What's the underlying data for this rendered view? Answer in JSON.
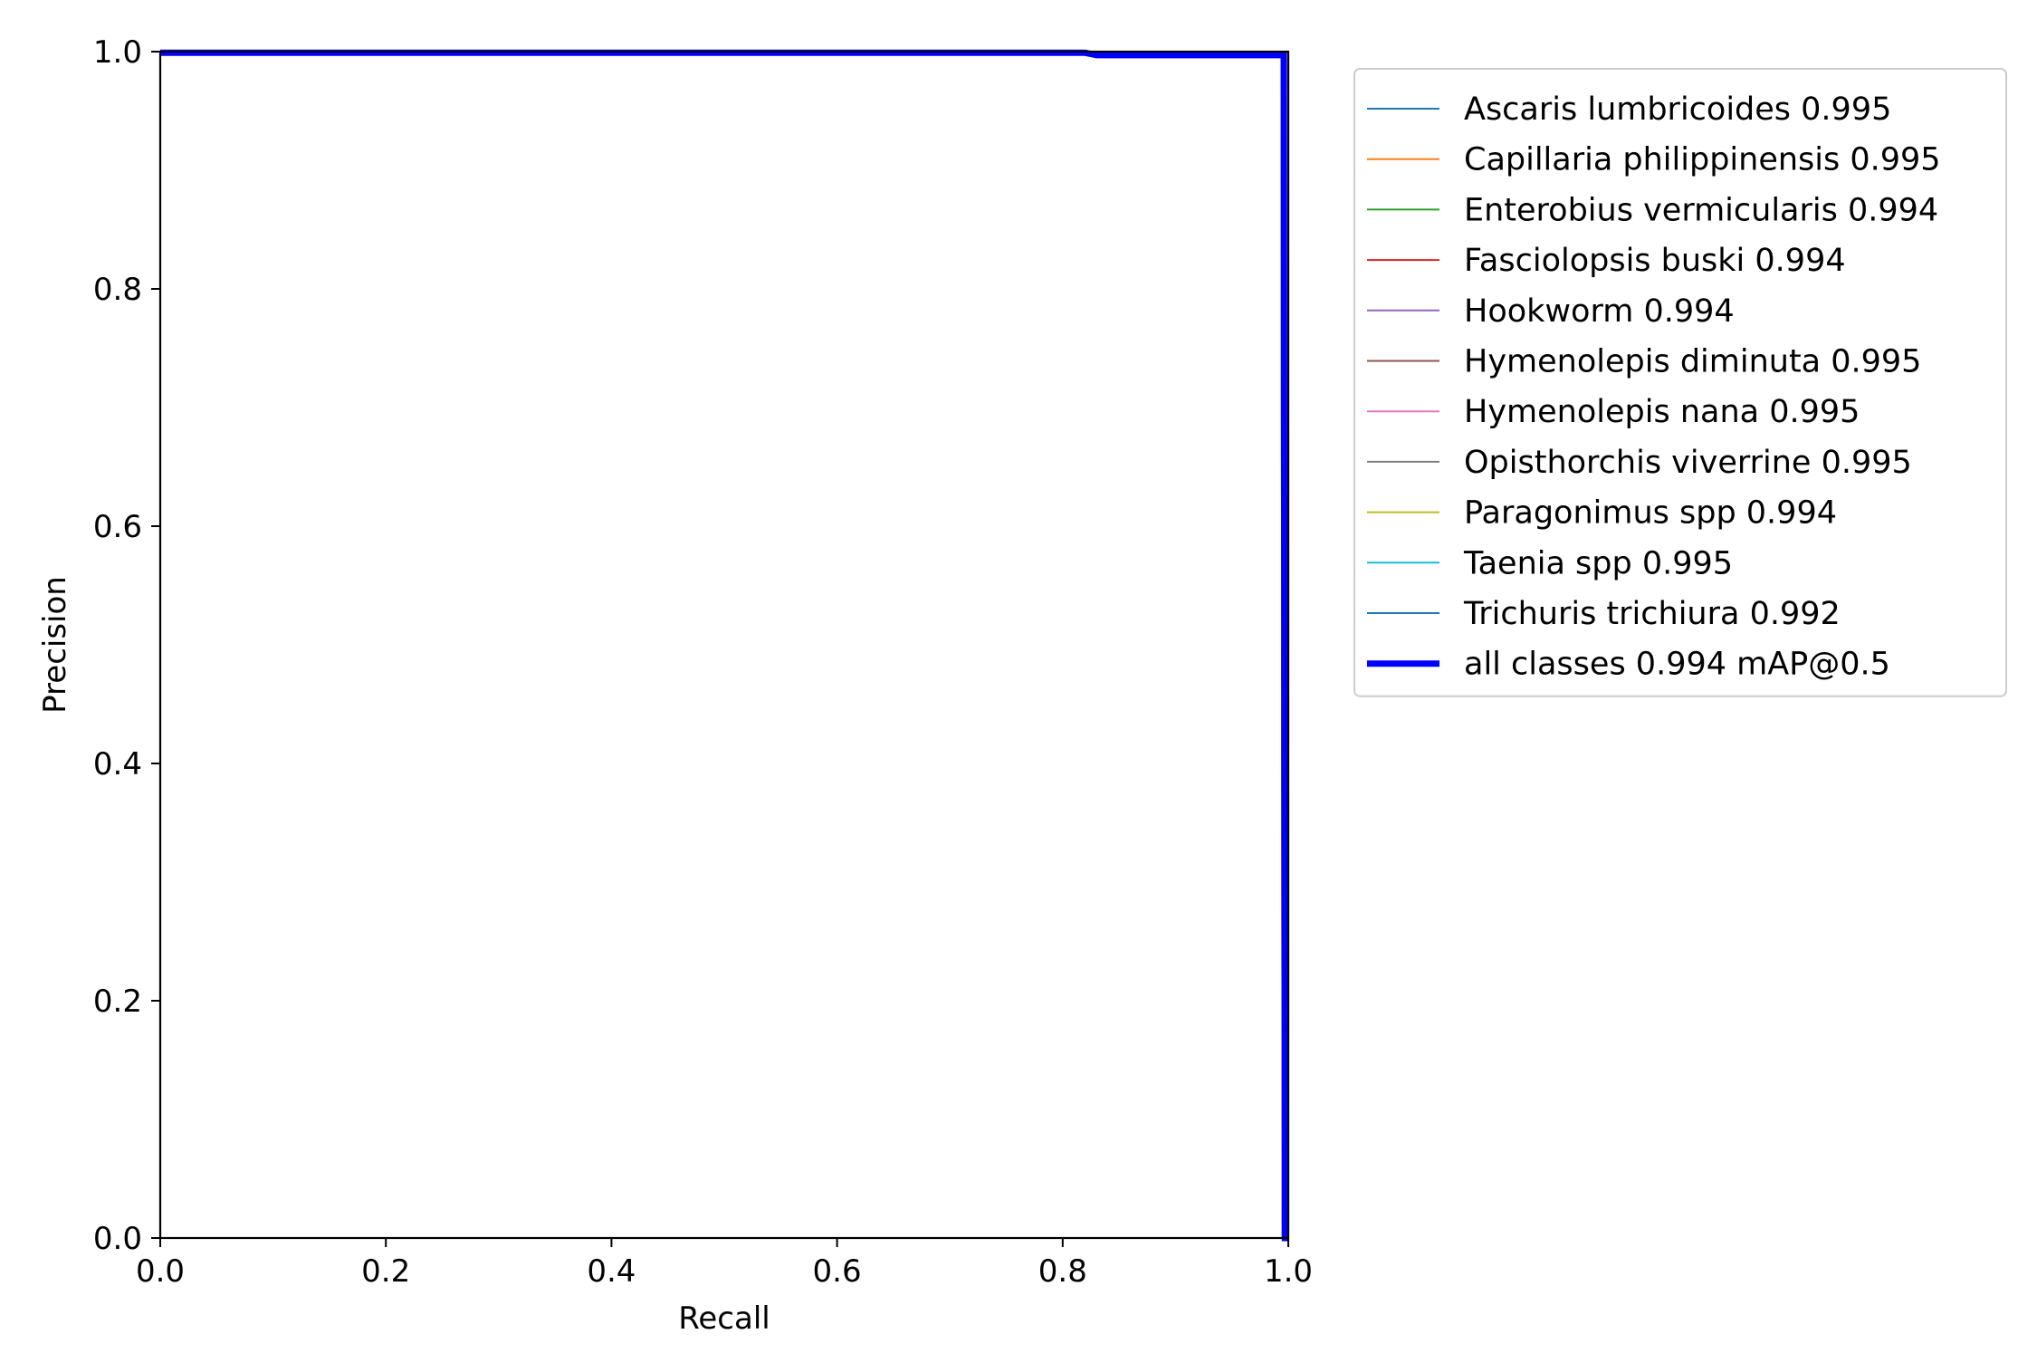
{
  "chart_data": {
    "type": "line",
    "title": "",
    "xlabel": "Recall",
    "ylabel": "Precision",
    "xlim": [
      0.0,
      1.0
    ],
    "ylim": [
      0.0,
      1.0
    ],
    "xticks": [
      "0.0",
      "0.2",
      "0.4",
      "0.6",
      "0.8",
      "1.0"
    ],
    "yticks": [
      "0.0",
      "0.2",
      "0.4",
      "0.6",
      "0.8",
      "1.0"
    ],
    "grid": false,
    "legend_placement": "outside upper right",
    "series": [
      {
        "name": "Ascaris lumbricoides 0.995",
        "color": "#1f77b4",
        "x": [
          0.0,
          0.995,
          0.996,
          1.0
        ],
        "y": [
          1.0,
          1.0,
          0.0,
          0.0
        ]
      },
      {
        "name": "Capillaria philippinensis 0.995",
        "color": "#ff7f0e",
        "x": [
          0.0,
          0.995,
          0.996,
          1.0
        ],
        "y": [
          1.0,
          1.0,
          0.0,
          0.0
        ]
      },
      {
        "name": "Enterobius vermicularis 0.994",
        "color": "#2ca02c",
        "x": [
          0.0,
          0.994,
          0.995,
          1.0
        ],
        "y": [
          1.0,
          1.0,
          0.0,
          0.0
        ]
      },
      {
        "name": "Fasciolopsis buski 0.994",
        "color": "#d62728",
        "x": [
          0.0,
          0.994,
          0.995,
          1.0
        ],
        "y": [
          1.0,
          1.0,
          0.0,
          0.0
        ]
      },
      {
        "name": "Hookworm 0.994",
        "color": "#9467bd",
        "x": [
          0.0,
          0.994,
          0.995,
          1.0
        ],
        "y": [
          1.0,
          1.0,
          0.0,
          0.0
        ]
      },
      {
        "name": "Hymenolepis diminuta 0.995",
        "color": "#8c564b",
        "x": [
          0.0,
          0.995,
          0.996,
          1.0
        ],
        "y": [
          1.0,
          1.0,
          0.0,
          0.0
        ]
      },
      {
        "name": "Hymenolepis nana 0.995",
        "color": "#e377c2",
        "x": [
          0.0,
          0.995,
          0.996,
          1.0
        ],
        "y": [
          1.0,
          1.0,
          0.0,
          0.0
        ]
      },
      {
        "name": "Opisthorchis viverrine 0.995",
        "color": "#7f7f7f",
        "x": [
          0.0,
          0.995,
          0.996,
          1.0
        ],
        "y": [
          1.0,
          1.0,
          0.0,
          0.0
        ]
      },
      {
        "name": "Paragonimus spp 0.994",
        "color": "#bcbd22",
        "x": [
          0.0,
          0.994,
          0.995,
          1.0
        ],
        "y": [
          1.0,
          1.0,
          0.0,
          0.0
        ]
      },
      {
        "name": "Taenia spp 0.995",
        "color": "#17becf",
        "x": [
          0.0,
          0.995,
          0.996,
          1.0
        ],
        "y": [
          1.0,
          1.0,
          0.0,
          0.0
        ]
      },
      {
        "name": "Trichuris trichiura 0.992",
        "color": "#1f77b4",
        "x": [
          0.0,
          0.82,
          0.83,
          0.995,
          0.996,
          1.0
        ],
        "y": [
          1.0,
          1.0,
          0.997,
          0.997,
          0.0,
          0.0
        ]
      },
      {
        "name": "all classes 0.994 mAP@0.5",
        "color": "#0000ff",
        "bold": true,
        "x": [
          0.0,
          0.82,
          0.83,
          0.996,
          0.997,
          1.0
        ],
        "y": [
          0.999,
          0.999,
          0.997,
          0.997,
          0.0,
          0.0
        ]
      }
    ]
  }
}
